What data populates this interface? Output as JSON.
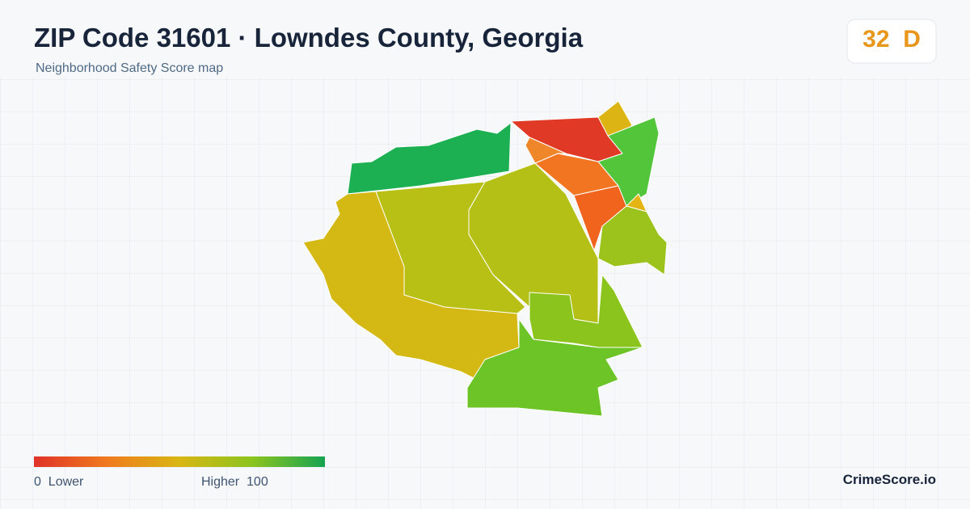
{
  "header": {
    "title": "ZIP Code 31601 · Lowndes County, Georgia",
    "subtitle": "Neighborhood Safety Score map"
  },
  "badge": {
    "score": 32,
    "grade": "D"
  },
  "legend": {
    "min": 0,
    "min_label": "Lower",
    "max_label": "Higher",
    "max": 100
  },
  "footer": {
    "brand": "CrimeScore.io"
  }
}
